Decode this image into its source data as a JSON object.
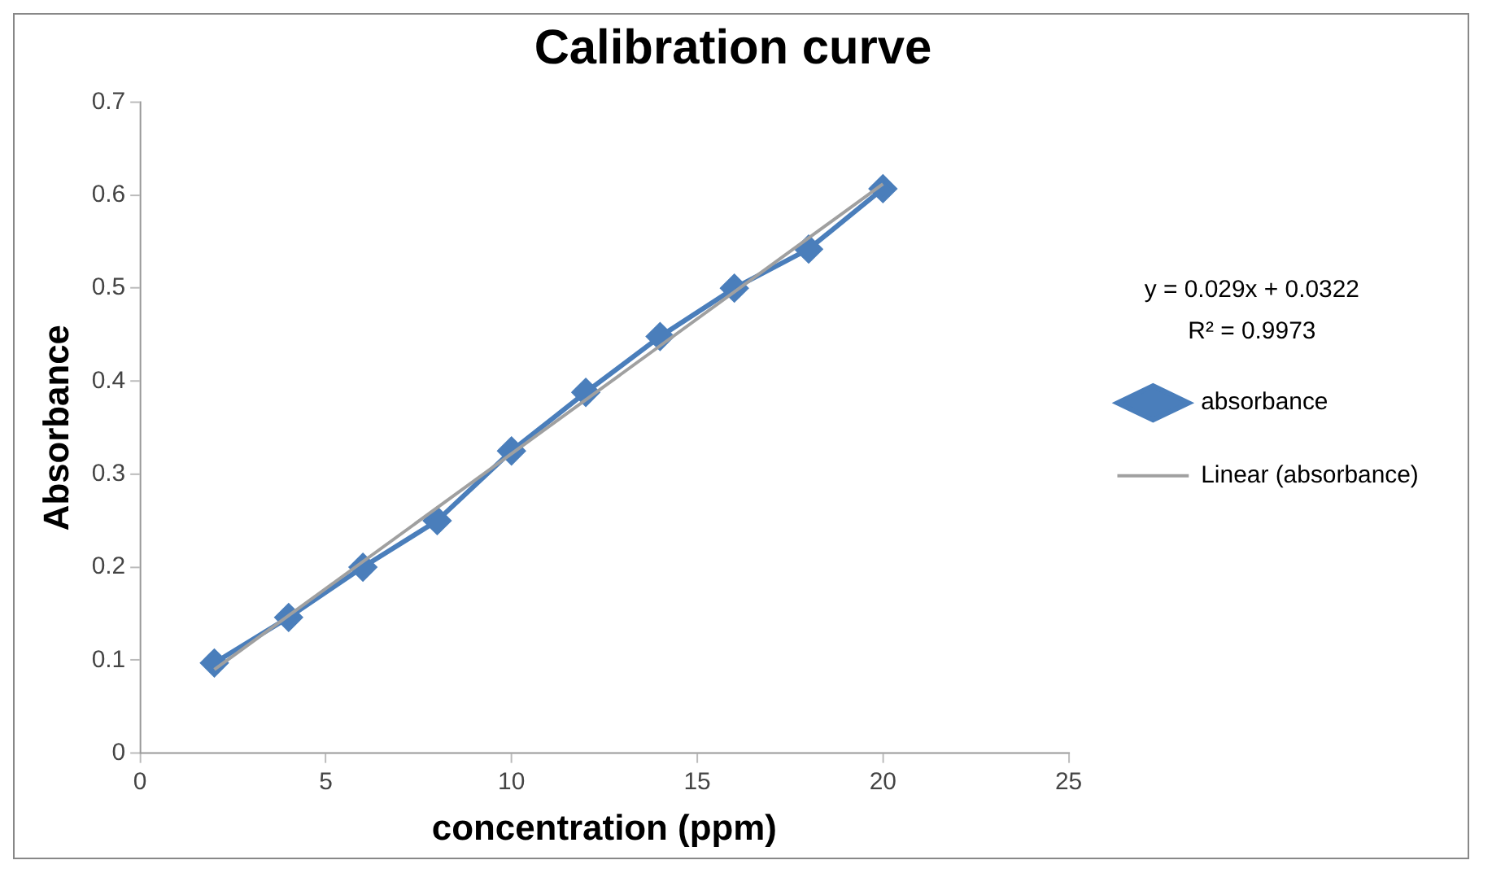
{
  "chart_data": {
    "type": "line",
    "title": "Calibration curve",
    "xlabel": "concentration (ppm)",
    "ylabel": "Absorbance",
    "xlim": [
      0,
      25
    ],
    "xticks": [
      0,
      5,
      10,
      15,
      20,
      25
    ],
    "ylim": [
      0,
      0.7
    ],
    "yticks": [
      0,
      0.1,
      0.2,
      0.3,
      0.4,
      0.5,
      0.6,
      0.7
    ],
    "grid": false,
    "legend": "right",
    "annotations": [
      "y = 0.029x + 0.0322",
      "R² = 0.9973"
    ],
    "series": [
      {
        "name": "absorbance",
        "color": "#4a7ebb",
        "marker": "diamond",
        "x": [
          2,
          4,
          6,
          8,
          10,
          12,
          14,
          16,
          18,
          20
        ],
        "values": [
          0.097,
          0.146,
          0.2,
          0.25,
          0.325,
          0.388,
          0.448,
          0.5,
          0.542,
          0.607
        ]
      },
      {
        "name": "Linear (absorbance)",
        "color": "#a0a0a0",
        "marker": "none",
        "x": [
          2,
          20
        ],
        "values": [
          0.09,
          0.612
        ]
      }
    ]
  }
}
